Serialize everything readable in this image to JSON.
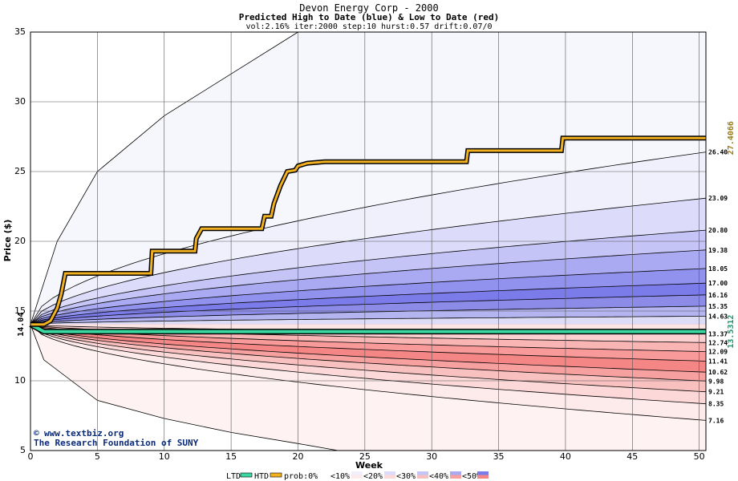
{
  "chart_data": {
    "type": "area",
    "title": "Devon Energy Corp - 2000",
    "subtitle": "Predicted High to Date (blue) &  Low to Date (red)",
    "params": "vol:2.16% iter:2000 step:10 hurst:0.57 drift:0.07/0",
    "xlabel": "Week",
    "ylabel": "Price ($)",
    "xlim": [
      0,
      50.5
    ],
    "ylim": [
      5,
      35
    ],
    "x_ticks": [
      "0",
      "5",
      "10",
      "15",
      "20",
      "25",
      "30",
      "35",
      "40",
      "45",
      "50"
    ],
    "y_ticks": [
      "5",
      "10",
      "15",
      "20",
      "25",
      "30",
      "35"
    ],
    "start_price": "14.04",
    "start_value": 14.04,
    "grid": true,
    "htd_final_label": "27.4066",
    "htd_final_value": 27.4066,
    "ltd_final_label": "13.5312",
    "ltd_final_value": 13.5312,
    "high_band_finals": [
      {
        "label": "26.40",
        "value": 26.4,
        "fill": "#f0f0fc"
      },
      {
        "label": "23.09",
        "value": 23.09,
        "fill": "#dcdcfa"
      },
      {
        "label": "20.80",
        "value": 20.8,
        "fill": "#c4c4f6"
      },
      {
        "label": "19.38",
        "value": 19.38,
        "fill": "#aaaaf2"
      },
      {
        "label": "18.05",
        "value": 18.05,
        "fill": "#9191ee"
      },
      {
        "label": "17.00",
        "value": 17.0,
        "fill": "#7b7bea"
      },
      {
        "label": "16.16",
        "value": 16.16,
        "fill": "#8c8ce8"
      },
      {
        "label": "15.35",
        "value": 15.35,
        "fill": "#b4b4f0"
      },
      {
        "label": "14.63",
        "value": 14.63,
        "fill": "#dcdcf6"
      }
    ],
    "low_band_finals": [
      {
        "label": "13.37",
        "value": 13.37,
        "fill": "#fde4e4"
      },
      {
        "label": "12.74",
        "value": 12.74,
        "fill": "#fcd0d0"
      },
      {
        "label": "12.09",
        "value": 12.09,
        "fill": "#f9b4b4"
      },
      {
        "label": "11.41",
        "value": 11.41,
        "fill": "#f89a9a"
      },
      {
        "label": "10.62",
        "value": 10.62,
        "fill": "#f48686"
      },
      {
        "label": "9.98",
        "value": 9.98,
        "fill": "#f6a0a0"
      },
      {
        "label": "9.21",
        "value": 9.21,
        "fill": "#f9c0c0"
      },
      {
        "label": "8.35",
        "value": 8.35,
        "fill": "#fcd8d8"
      },
      {
        "label": "7.16",
        "value": 7.16,
        "fill": "#fdeaea"
      }
    ],
    "outer_high_envelope": [
      [
        0,
        14.04
      ],
      [
        2,
        20
      ],
      [
        5,
        25
      ],
      [
        10,
        29
      ],
      [
        15,
        32
      ],
      [
        20,
        35
      ]
    ],
    "outer_low_envelope": [
      [
        0,
        14.04
      ],
      [
        1,
        11.5
      ],
      [
        5,
        8.6
      ],
      [
        10,
        7.3
      ],
      [
        15,
        6.3
      ],
      [
        20,
        5.5
      ],
      [
        23,
        5
      ]
    ],
    "htd_path": [
      [
        0,
        14.04
      ],
      [
        1,
        14.04
      ],
      [
        1.5,
        14.3
      ],
      [
        2,
        15.2
      ],
      [
        2.3,
        16.2
      ],
      [
        2.6,
        17.7
      ],
      [
        9,
        17.7
      ],
      [
        9.1,
        19.3
      ],
      [
        12.3,
        19.3
      ],
      [
        12.4,
        20.2
      ],
      [
        12.8,
        20.9
      ],
      [
        17.3,
        20.9
      ],
      [
        17.5,
        21.8
      ],
      [
        18,
        21.8
      ],
      [
        18.2,
        22.7
      ],
      [
        18.7,
        24
      ],
      [
        19.2,
        25
      ],
      [
        19.8,
        25.1
      ],
      [
        20,
        25.4
      ],
      [
        20.7,
        25.6
      ],
      [
        22,
        25.7
      ],
      [
        32.6,
        25.7
      ],
      [
        32.7,
        26.5
      ],
      [
        39.7,
        26.5
      ],
      [
        39.8,
        27.4
      ],
      [
        50.5,
        27.4
      ]
    ],
    "ltd_path": [
      [
        0,
        14.04
      ],
      [
        1,
        13.53
      ],
      [
        50.5,
        13.53
      ]
    ],
    "legend": {
      "ltd": "LTD",
      "htd": "HTD",
      "prob": "prob:0%",
      "b10": "<10%",
      "b20": "<20%",
      "b30": "<30%",
      "b40": "<40%",
      "b50": "<50%"
    },
    "credit": {
      "copyright": "©",
      "site": "www.textbiz.org",
      "org": "The Research Foundation of SUNY"
    }
  }
}
